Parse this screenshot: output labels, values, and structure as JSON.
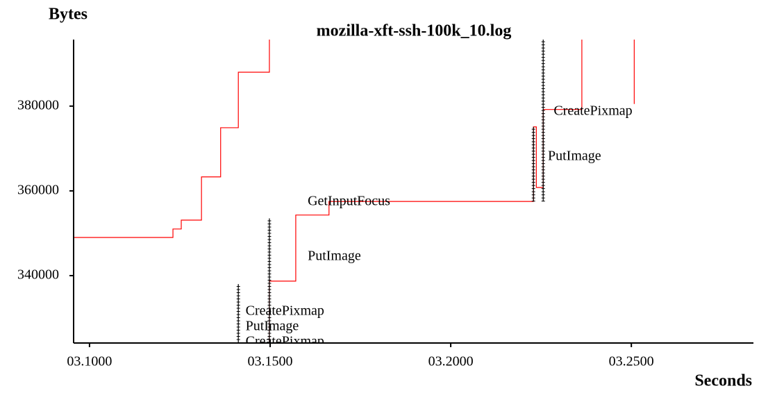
{
  "chart_data": {
    "type": "line",
    "title": "mozilla-xft-ssh-100k_10.log",
    "y_label": "Bytes",
    "x_label": "Seconds",
    "xlim": [
      3.0956,
      3.2838
    ],
    "ylim": [
      324100,
      395700
    ],
    "xticks": [
      {
        "value": 3.1,
        "label": "03.1000"
      },
      {
        "value": 3.15,
        "label": "03.1500"
      },
      {
        "value": 3.2,
        "label": "03.2000"
      },
      {
        "value": 3.25,
        "label": "03.2500"
      }
    ],
    "yticks": [
      340000,
      360000,
      380000
    ],
    "grid": false,
    "series": [
      {
        "color": "#ff0000",
        "x": [
          3.0956,
          3.1231,
          3.1231,
          3.1254,
          3.1254,
          3.131,
          3.131,
          3.1363,
          3.1363,
          3.1412,
          3.1412,
          3.1498,
          3.1498,
          3.1498,
          3.1498,
          3.1498,
          3.1571,
          3.1571,
          3.1663,
          3.1663,
          3.2229,
          3.2229,
          3.2237,
          3.2237,
          3.2256,
          3.2256,
          3.2363,
          3.2363,
          3.2363,
          3.2508,
          3.2508
        ],
        "values": [
          349000,
          349000,
          351000,
          351000,
          353100,
          353100,
          363300,
          363300,
          374900,
          374900,
          388000,
          388000,
          395700,
          null,
          324100,
          338700,
          338700,
          354300,
          354300,
          357500,
          357500,
          375100,
          375100,
          360800,
          360800,
          379200,
          379200,
          395700,
          null,
          395700,
          380500
        ]
      },
      {
        "color": "#000000",
        "x": [
          3.1412,
          3.1412,
          3.1412,
          3.1498,
          3.1498,
          3.1498,
          3.2229,
          3.2229,
          3.2229,
          3.2256,
          3.2256
        ],
        "values": [
          324100,
          338000,
          null,
          324100,
          353500,
          null,
          357500,
          375100,
          null,
          357500,
          395700
        ]
      }
    ],
    "annotations": [
      {
        "text": "CreatePixmap",
        "x": 3.1432,
        "y": 331500,
        "color": "#000000"
      },
      {
        "text": "PutImage",
        "x": 3.1432,
        "y": 327900,
        "color": "#000000"
      },
      {
        "text": "CreatePixmap",
        "x": 3.1432,
        "y": 324300,
        "color": "#000000"
      },
      {
        "text": "GetInputFocus",
        "x": 3.1604,
        "y": 357400,
        "color": "#00dd00"
      },
      {
        "text": "PutImage",
        "x": 3.1604,
        "y": 344400,
        "color": "#ff0000"
      },
      {
        "text": "CreatePixmap",
        "x": 3.2285,
        "y": 378700,
        "color": "#ff0000"
      },
      {
        "text": "PutImage",
        "x": 3.2269,
        "y": 368000,
        "color": "#ff0000"
      }
    ]
  }
}
